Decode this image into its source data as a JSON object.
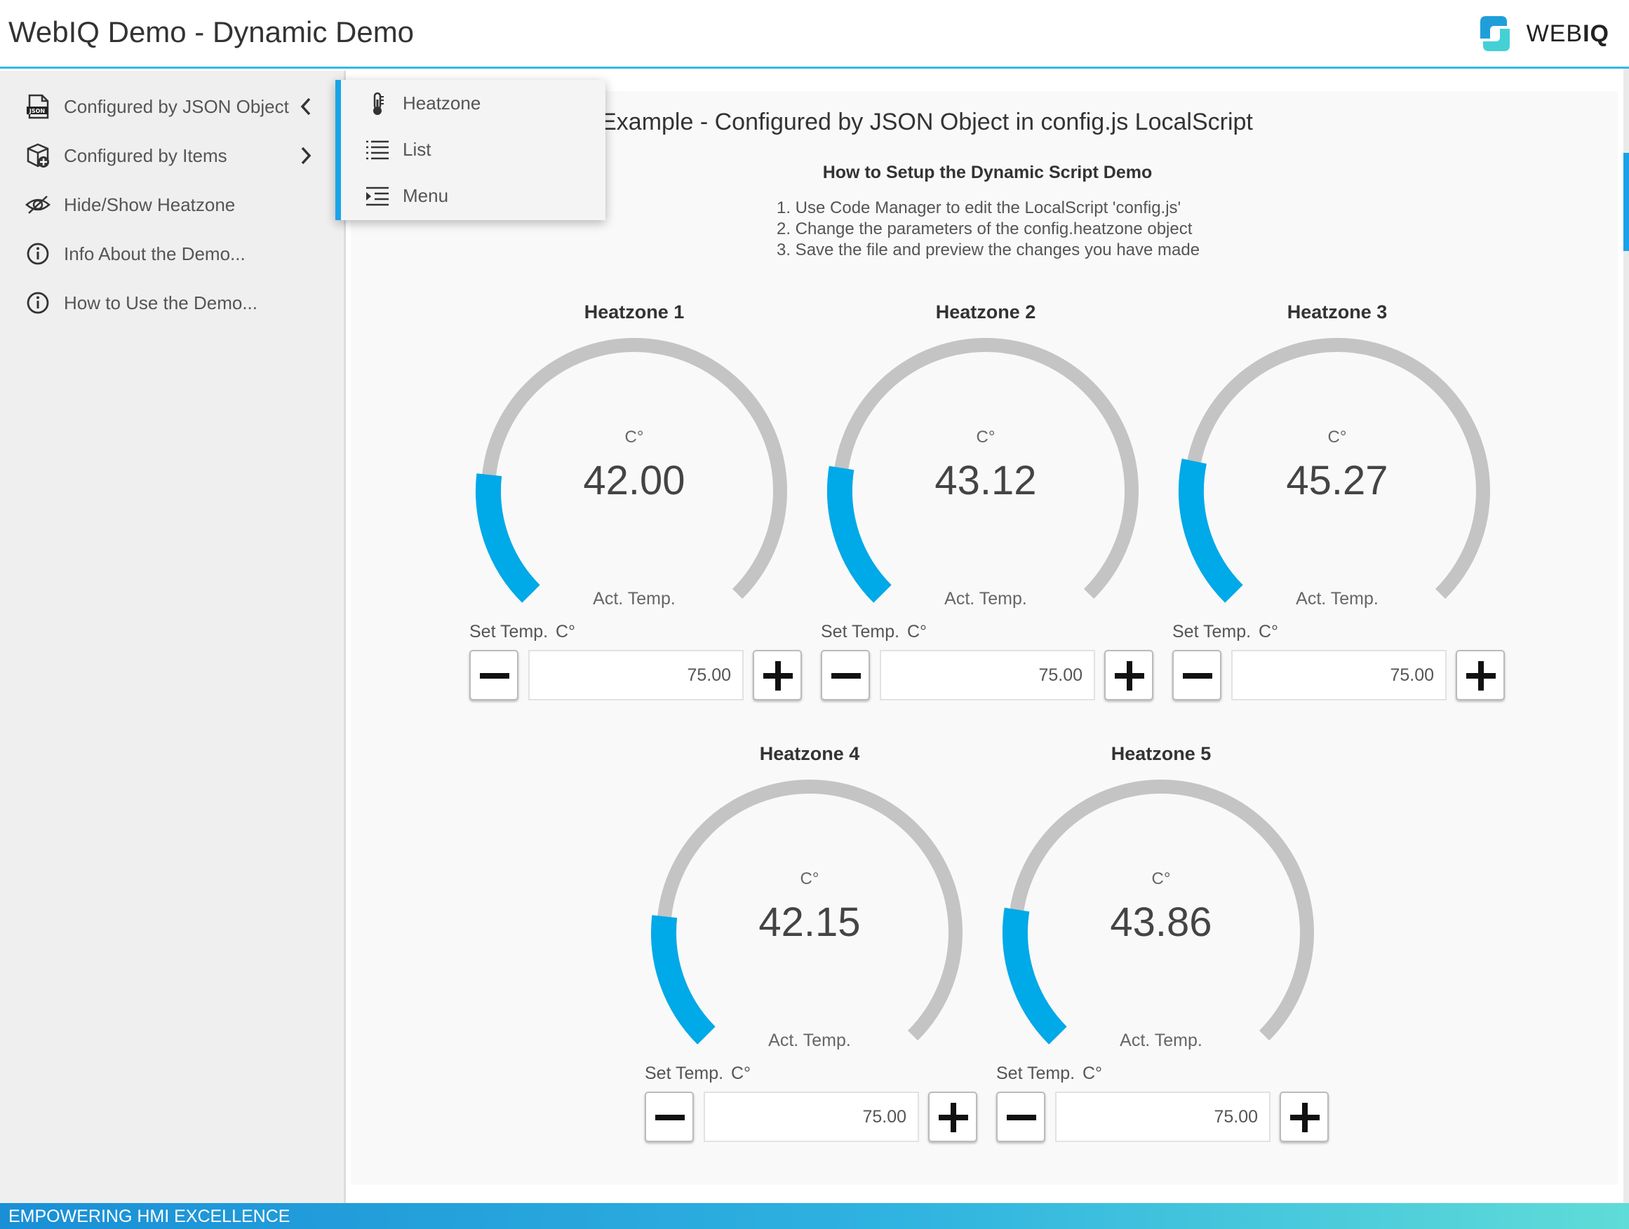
{
  "header": {
    "title": "WebIQ Demo - Dynamic Demo",
    "logo_text_light": "WEB",
    "logo_text_bold": "IQ"
  },
  "sidebar": {
    "items": [
      {
        "label": "Configured by JSON Object",
        "icon": "json-file-icon",
        "chevron": "chevron-left-icon"
      },
      {
        "label": "Configured by Items",
        "icon": "items-box-icon",
        "chevron": "chevron-right-icon"
      },
      {
        "label": "Hide/Show Heatzone",
        "icon": "eye-icon"
      },
      {
        "label": "Info About the Demo...",
        "icon": "info-icon"
      },
      {
        "label": "How to Use the Demo...",
        "icon": "info-icon"
      }
    ]
  },
  "submenu": {
    "items": [
      {
        "label": "Heatzone",
        "icon": "thermometer-icon"
      },
      {
        "label": "List",
        "icon": "list-icon"
      },
      {
        "label": "Menu",
        "icon": "menu-indent-icon"
      }
    ]
  },
  "content": {
    "title": "Heatzones Example - Configured by JSON Object in config.js LocalScript",
    "howto_title": "How to Setup the Dynamic Script Demo",
    "steps": [
      "1. Use Code Manager to edit the LocalScript 'config.js'",
      "2. Change the parameters of the config.heatzone object",
      "3. Save the file and preview the changes you have made"
    ]
  },
  "zones": [
    {
      "name": "Heatzone 1",
      "unit": "C°",
      "value": "42.00",
      "act_label": "Act. Temp.",
      "set_label": "Set Temp.",
      "set_unit": "C°",
      "set_value": "75.00",
      "fill_fraction": 0.19
    },
    {
      "name": "Heatzone 2",
      "unit": "C°",
      "value": "43.12",
      "act_label": "Act. Temp.",
      "set_label": "Set Temp.",
      "set_unit": "C°",
      "set_value": "75.00",
      "fill_fraction": 0.2
    },
    {
      "name": "Heatzone 3",
      "unit": "C°",
      "value": "45.27",
      "act_label": "Act. Temp.",
      "set_label": "Set Temp.",
      "set_unit": "C°",
      "set_value": "75.00",
      "fill_fraction": 0.21
    },
    {
      "name": "Heatzone 4",
      "unit": "C°",
      "value": "42.15",
      "act_label": "Act. Temp.",
      "set_label": "Set Temp.",
      "set_unit": "C°",
      "set_value": "75.00",
      "fill_fraction": 0.19
    },
    {
      "name": "Heatzone 5",
      "unit": "C°",
      "value": "43.86",
      "act_label": "Act. Temp.",
      "set_label": "Set Temp.",
      "set_unit": "C°",
      "set_value": "75.00",
      "fill_fraction": 0.2
    }
  ],
  "footer": {
    "text": "EMPOWERING HMI EXCELLENCE"
  },
  "colors": {
    "accent": "#1aa3e8",
    "gauge_track": "#c4c4c4",
    "gauge_fill": "#00a9e8"
  }
}
